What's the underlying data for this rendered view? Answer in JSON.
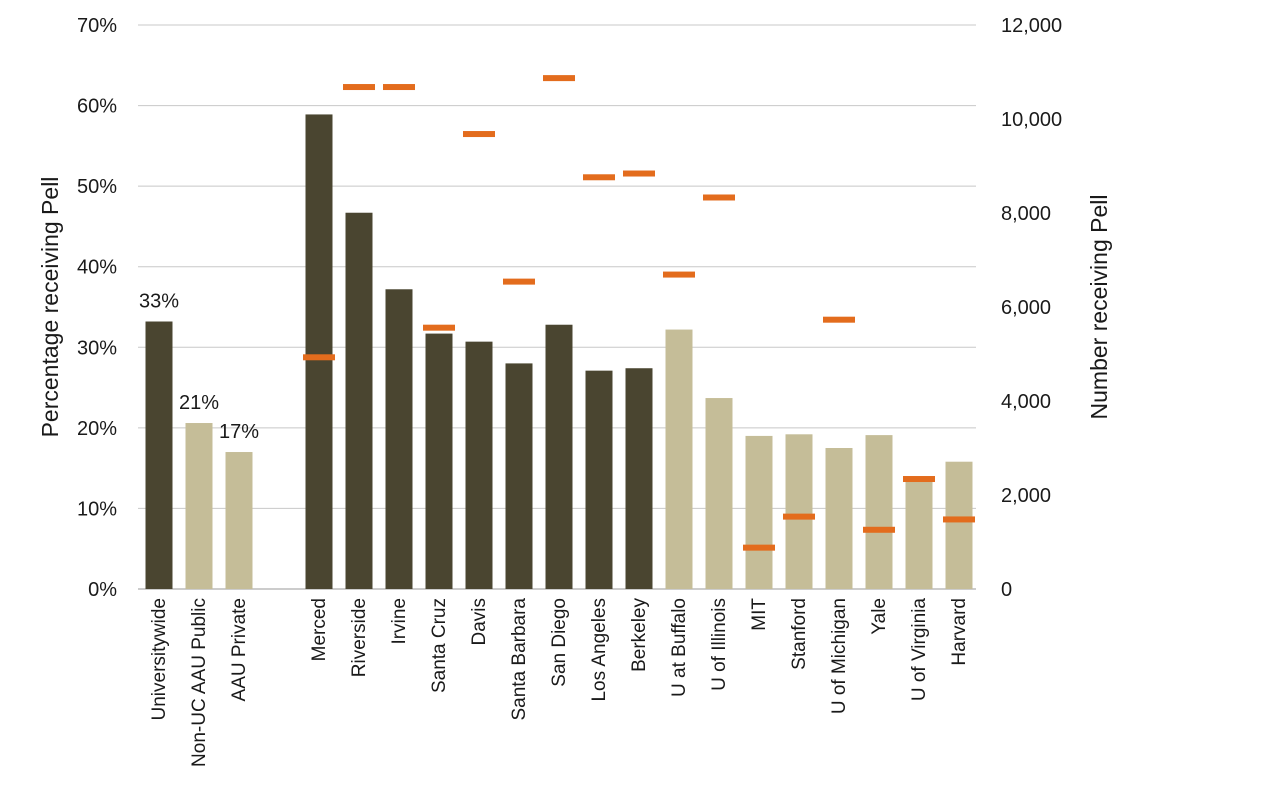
{
  "chart_data": {
    "type": "bar",
    "title": "",
    "categories": [
      "Universitywide",
      "Non-UC AAU Public",
      "AAU Private",
      "Merced",
      "Riverside",
      "Irvine",
      "Santa Cruz",
      "Davis",
      "Santa Barbara",
      "San Diego",
      "Los Angeles",
      "Berkeley",
      "U at Buffalo",
      "U of Illinois",
      "MIT",
      "Stanford",
      "U of Michigan",
      "Yale",
      "U of Virginia",
      "Harvard"
    ],
    "series": [
      {
        "axis": "left",
        "kind": "bar",
        "values": [
          33.2,
          20.6,
          17.0,
          58.9,
          46.7,
          37.2,
          31.7,
          30.7,
          28.0,
          32.8,
          27.1,
          27.4,
          32.2,
          23.7,
          19.0,
          19.2,
          17.5,
          19.1,
          14.0,
          15.8
        ],
        "colors": [
          "#4a4530",
          "#c5bd98",
          "#c5bd98",
          "#4a4530",
          "#4a4530",
          "#4a4530",
          "#4a4530",
          "#4a4530",
          "#4a4530",
          "#4a4530",
          "#4a4530",
          "#4a4530",
          "#c5bd98",
          "#c5bd98",
          "#c5bd98",
          "#c5bd98",
          "#c5bd98",
          "#c5bd98",
          "#c5bd98",
          "#c5bd98"
        ]
      },
      {
        "axis": "right",
        "kind": "marker",
        "color": "#e36c1d",
        "values": [
          null,
          null,
          null,
          4930,
          10680,
          10680,
          5560,
          9680,
          6540,
          10870,
          8760,
          8840,
          6690,
          8330,
          880,
          1540,
          5730,
          1260,
          2340,
          1480
        ]
      }
    ],
    "data_labels": [
      "33%",
      "21%",
      "17%"
    ],
    "ylabel": "Percentage receiving Pell",
    "y2label": "Number receiving Pell",
    "ylim": [
      0,
      70
    ],
    "y2lim": [
      0,
      12000
    ],
    "yticks": [
      "0%",
      "10%",
      "20%",
      "30%",
      "40%",
      "50%",
      "60%",
      "70%"
    ],
    "y2ticks": [
      "0",
      "2,000",
      "4,000",
      "6,000",
      "8,000",
      "10,000",
      "12,000"
    ],
    "grid": true,
    "legend": "none"
  }
}
